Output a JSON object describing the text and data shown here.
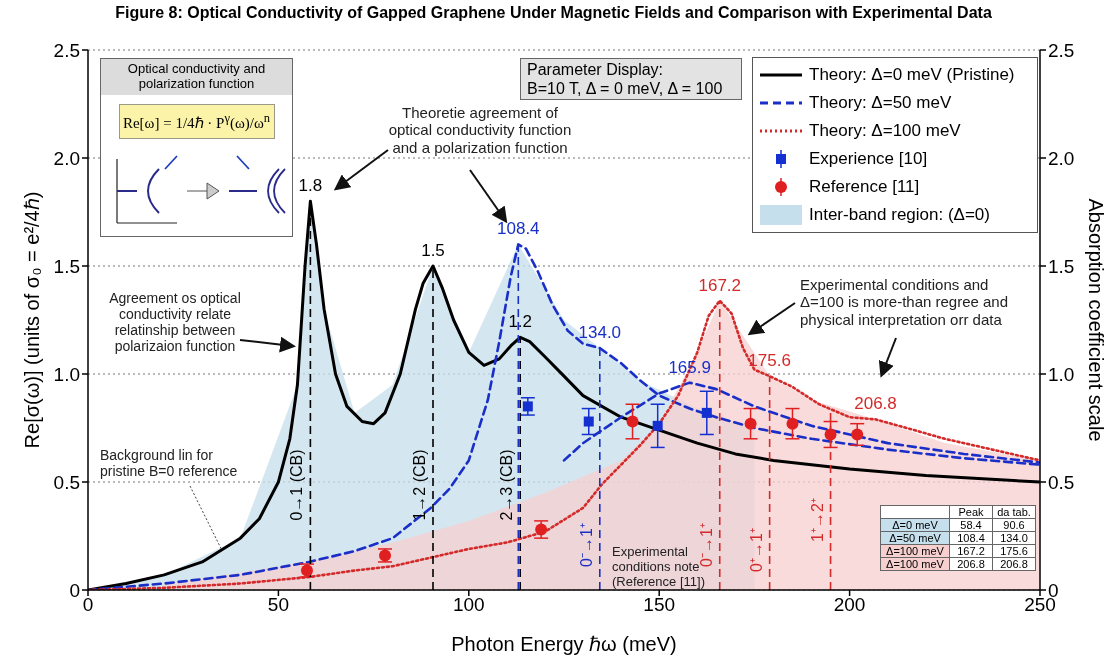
{
  "chart_data": {
    "type": "line",
    "title": "Figure 8: Optical Conductivity of Gapped Graphene Under Magnetic Fields and Comparison with Experimental Data",
    "xlabel": "Photon Energy ℏω (meV)",
    "ylabel": "Re[σ(ω)] (units of σ₀ = e²/4ℏ)",
    "y2label": "Absorption coefficient scale",
    "xlim": [
      0,
      250
    ],
    "xticks": [
      0,
      50,
      100,
      150,
      200,
      250
    ],
    "ylim": [
      0,
      2.5
    ],
    "yticks": [
      0,
      {
        "value": 0.5,
        "label": "0.5"
      },
      {
        "value": 1,
        "label": "1.0"
      },
      {
        "value": 1.5,
        "label": "1.5"
      },
      {
        "value": 2,
        "label": "2.0"
      },
      {
        "value": 2.5,
        "label": "2.5"
      }
    ],
    "y2lim": [
      0,
      2.5
    ],
    "y2ticks": [
      0,
      {
        "value": 0.5,
        "label": "0.5"
      },
      {
        "value": 1,
        "label": "1.0"
      },
      {
        "value": 1.5,
        "label": "1.5"
      },
      {
        "value": 2,
        "label": "2.0"
      },
      {
        "value": 2.5,
        "label": "2.5"
      }
    ],
    "grid": "y",
    "legend": "top right",
    "series": [
      {
        "name": "Theory: Δ=0 meV (Pristine)",
        "color": "#000000",
        "line_style": "solid",
        "x": [
          0,
          10,
          20,
          30,
          40,
          45,
          50,
          53,
          55,
          57,
          58.4,
          60,
          62,
          65,
          68,
          72,
          75,
          78,
          82,
          86,
          88,
          90.6,
          93,
          96,
          100,
          104,
          108,
          111,
          113.5,
          116,
          120,
          125,
          130,
          140,
          150,
          160,
          170,
          180,
          200,
          220,
          250
        ],
        "values": [
          0,
          0.03,
          0.07,
          0.13,
          0.24,
          0.33,
          0.5,
          0.7,
          0.95,
          1.5,
          1.8,
          1.6,
          1.3,
          1.0,
          0.85,
          0.78,
          0.77,
          0.82,
          1.0,
          1.3,
          1.42,
          1.5,
          1.4,
          1.25,
          1.1,
          1.04,
          1.07,
          1.13,
          1.17,
          1.15,
          1.08,
          0.99,
          0.9,
          0.8,
          0.74,
          0.68,
          0.63,
          0.6,
          0.56,
          0.53,
          0.5
        ]
      },
      {
        "name": "Theory: Δ=50 meV",
        "color": "#1a2fc8",
        "line_style": "dashed",
        "x": [
          0,
          20,
          40,
          58,
          70,
          80,
          90,
          95,
          100,
          105,
          108,
          111,
          113,
          115,
          118,
          122,
          126,
          130,
          134.4,
          140,
          145,
          150,
          158,
          165,
          175,
          190,
          210,
          230,
          250
        ],
        "values": [
          0,
          0.03,
          0.07,
          0.13,
          0.18,
          0.24,
          0.38,
          0.47,
          0.6,
          0.88,
          1.15,
          1.45,
          1.6,
          1.58,
          1.48,
          1.32,
          1.2,
          1.14,
          1.12,
          1.05,
          0.97,
          0.9,
          0.84,
          0.8,
          0.75,
          0.7,
          0.65,
          0.61,
          0.58
        ]
      },
      {
        "color": "#1a2fc8",
        "line_style": "dashed",
        "x": [
          125,
          130,
          140,
          150,
          158,
          165,
          175,
          190,
          210,
          230,
          250
        ],
        "values": [
          0.6,
          0.68,
          0.8,
          0.91,
          0.96,
          0.93,
          0.85,
          0.76,
          0.68,
          0.63,
          0.59
        ]
      },
      {
        "name": "Theory: Δ=100 meV",
        "color": "#d42a2a",
        "line_style": "dotted",
        "x": [
          0,
          20,
          40,
          58,
          70,
          80,
          90,
          100,
          110,
          120,
          130,
          135,
          140,
          145,
          150,
          155,
          160,
          163,
          165.9,
          169,
          172,
          175,
          179,
          185,
          192,
          200,
          206.8,
          215,
          225,
          235,
          250
        ],
        "values": [
          0,
          0.01,
          0.03,
          0.06,
          0.09,
          0.11,
          0.15,
          0.19,
          0.22,
          0.27,
          0.38,
          0.49,
          0.58,
          0.67,
          0.77,
          0.9,
          1.1,
          1.27,
          1.34,
          1.28,
          1.12,
          1.02,
          0.99,
          0.94,
          0.86,
          0.8,
          0.79,
          0.75,
          0.7,
          0.66,
          0.6
        ]
      },
      {
        "name": "Experience [10]",
        "type": "scatter",
        "marker": "square",
        "color": "#1530d0",
        "x": [
          115.5,
          131.5,
          149.6,
          162.5
        ],
        "values": [
          0.85,
          0.78,
          0.76,
          0.82
        ],
        "errors": [
          0.04,
          0.06,
          0.1,
          0.1
        ]
      },
      {
        "name": "Reference [11]",
        "type": "scatter",
        "marker": "circle",
        "color": "#e02020",
        "x": [
          57.5,
          78,
          119,
          143,
          174,
          185,
          195,
          202
        ],
        "values": [
          0.09,
          0.16,
          0.28,
          0.78,
          0.77,
          0.77,
          0.72,
          0.72
        ],
        "errors": [
          0.03,
          0.03,
          0.04,
          0.08,
          0.07,
          0.07,
          0.06,
          0.05
        ]
      },
      {
        "name": "Inter-band region: (Δ=0)",
        "type": "area",
        "color": "#c6dfec",
        "x": [
          0,
          20,
          40,
          55,
          58.4,
          62,
          70,
          80,
          90.6,
          100,
          113,
          125,
          134.4,
          145,
          160,
          175
        ],
        "values": [
          0,
          0.07,
          0.24,
          0.95,
          1.8,
          1.3,
          0.82,
          0.95,
          1.5,
          1.1,
          1.6,
          1.25,
          1.12,
          0.97,
          0.84,
          0.75
        ]
      },
      {
        "type": "area",
        "color": "#f7cfcf",
        "x": [
          20,
          40,
          60,
          80,
          100,
          120,
          140,
          150,
          160,
          165.9,
          179,
          190,
          206.8,
          225,
          250
        ],
        "values": [
          0.03,
          0.08,
          0.14,
          0.22,
          0.32,
          0.45,
          0.6,
          0.77,
          1.1,
          1.34,
          0.99,
          0.88,
          0.79,
          0.68,
          0.6
        ]
      }
    ],
    "ref_lines": [
      {
        "axis": "x",
        "value": 58.4,
        "label": "0→1 (CB)",
        "color": "#000000",
        "line_style": "dashed"
      },
      {
        "axis": "x",
        "value": 90.6,
        "label": "1→2 (CB)",
        "color": "#000000",
        "line_style": "dashed"
      },
      {
        "axis": "x",
        "value": 113.5,
        "label": "2→3 (CB)",
        "color": "#000000",
        "line_style": "dashed"
      },
      {
        "axis": "x",
        "value": 113,
        "color": "#1a2fc8",
        "line_style": "dashed"
      },
      {
        "axis": "x",
        "value": 134.4,
        "label": "0⁻→1⁺",
        "color": "#1a2fc8",
        "line_style": "dashed"
      },
      {
        "axis": "x",
        "value": 165.9,
        "label": "0⁻→1⁺",
        "color": "#d42a2a",
        "line_style": "dashed"
      },
      {
        "axis": "x",
        "value": 179,
        "label": "0⁺→1⁺",
        "color": "#d42a2a",
        "line_style": "dashed"
      },
      {
        "axis": "x",
        "value": 195,
        "label": "1⁺→2⁺",
        "color": "#d42a2a",
        "line_style": "dashed"
      }
    ],
    "annotations": [
      {
        "text": "1.8",
        "x": 58.4,
        "y": 1.8
      },
      {
        "text": "1.5",
        "x": 90.6,
        "y": 1.5
      },
      {
        "text": "1.2",
        "x": 113.5,
        "y": 1.17
      },
      {
        "text": "108.4",
        "x": 113,
        "y": 1.6
      },
      {
        "text": "134.0",
        "x": 134.4,
        "y": 1.12
      },
      {
        "text": "165.9",
        "x": 158,
        "y": 0.96
      },
      {
        "text": "167.2",
        "x": 165.9,
        "y": 1.34
      },
      {
        "text": "175.6",
        "x": 179,
        "y": 0.99
      },
      {
        "text": "206.8",
        "x": 206.8,
        "y": 0.79
      },
      "Theoretie agreement of optical conductivity function and a polarization function",
      "Agreement os optical conductivity relate relatinship between polarizaion function",
      {
        "text": "Background lin for pristine B=0 reference",
        "x": 35,
        "y": 0.19
      },
      "Experimental conditions and Δ=100 is more-than regree and physical interpretation orr data",
      "Experimental conditions note (Reference [11])",
      "Parameter Display:",
      "B=10 T, Δ = 0 meV, Δ = 100",
      "Optical conductivity and polarization function",
      "Re[ω] = 1/4ℏ · P$^{γ}$(ω)/ω$^{n}$",
      "Peak",
      "da tab.",
      "Δ=0 meV",
      "58.4",
      "90.6",
      "Δ=50 meV",
      "108.4",
      "134.0",
      "Δ=100 meV",
      "167.2",
      "175.6",
      "Δ=100 meV",
      "206.8",
      "206.8"
    ]
  }
}
